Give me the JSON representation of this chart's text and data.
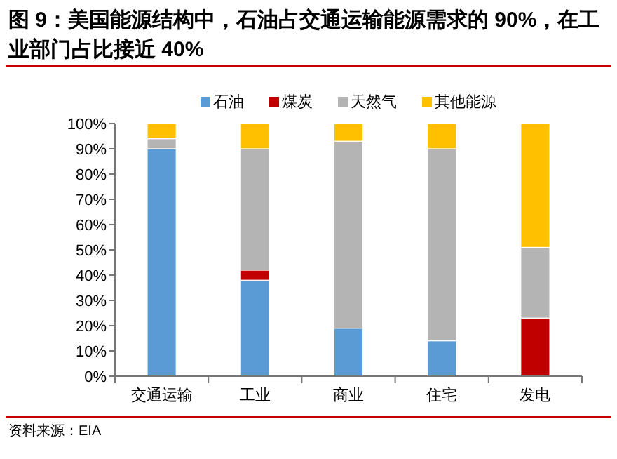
{
  "chart_data": {
    "type": "bar",
    "stacked": true,
    "title": "图 9：美国能源结构中，石油占交通运输能源需求的 90%，在工业部门占比接近 40%",
    "categories": [
      "交通运输",
      "工业",
      "商业",
      "住宅",
      "发电"
    ],
    "series": [
      {
        "name": "石油",
        "color": "#5b9bd5",
        "values": [
          90,
          38,
          19,
          14,
          0
        ]
      },
      {
        "name": "煤炭",
        "color": "#c00000",
        "values": [
          0,
          4,
          0,
          0,
          23
        ]
      },
      {
        "name": "天然气",
        "color": "#b4b4b4",
        "values": [
          4,
          48,
          74,
          76,
          28
        ]
      },
      {
        "name": "其他能源",
        "color": "#ffc000",
        "values": [
          6,
          10,
          7,
          10,
          49
        ]
      }
    ],
    "ylim": [
      0,
      100
    ],
    "yticks": [
      {
        "value": 0,
        "label": "0%"
      },
      {
        "value": 10,
        "label": "10%"
      },
      {
        "value": 20,
        "label": "20%"
      },
      {
        "value": 30,
        "label": "30%"
      },
      {
        "value": 40,
        "label": "40%"
      },
      {
        "value": 50,
        "label": "50%"
      },
      {
        "value": 60,
        "label": "60%"
      },
      {
        "value": 70,
        "label": "70%"
      },
      {
        "value": 80,
        "label": "80%"
      },
      {
        "value": 90,
        "label": "90%"
      },
      {
        "value": 100,
        "label": "100%"
      }
    ],
    "legend": "top",
    "grid": false,
    "annotations": [
      "资料来源：EIA"
    ]
  }
}
